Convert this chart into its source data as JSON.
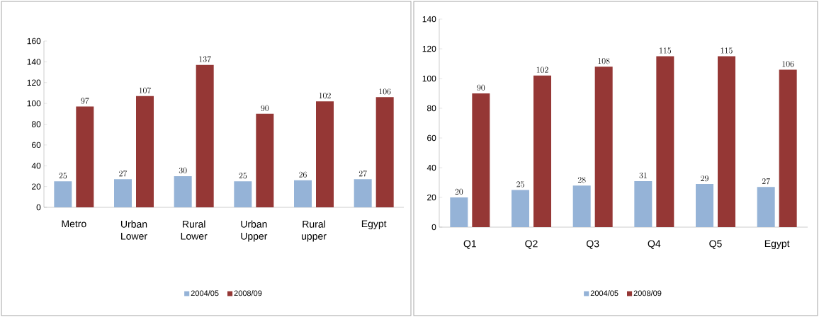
{
  "chart_data": [
    {
      "type": "bar",
      "categories": [
        "Metro",
        "Urban Lower",
        "Rural Lower",
        "Urban Upper",
        "Rural upper",
        "Egypt"
      ],
      "series": [
        {
          "name": "2004/05",
          "color": "#95b3d7",
          "values": [
            25,
            27,
            30,
            25,
            26,
            27
          ]
        },
        {
          "name": "2008/09",
          "color": "#953735",
          "values": [
            97,
            107,
            137,
            90,
            102,
            106
          ]
        }
      ],
      "ylim": [
        0,
        160
      ],
      "yticks": [
        0,
        20,
        40,
        60,
        80,
        100,
        120,
        140,
        160
      ],
      "data_labels": true,
      "legend": "bottom",
      "grid": false
    },
    {
      "type": "bar",
      "categories": [
        "Q1",
        "Q2",
        "Q3",
        "Q4",
        "Q5",
        "Egypt"
      ],
      "series": [
        {
          "name": "2004/05",
          "color": "#95b3d7",
          "values": [
            20,
            25,
            28,
            31,
            29,
            27
          ]
        },
        {
          "name": "2008/09",
          "color": "#953735",
          "values": [
            90,
            102,
            108,
            115,
            115,
            106
          ]
        }
      ],
      "ylim": [
        0,
        140
      ],
      "yticks": [
        0,
        20,
        40,
        60,
        80,
        100,
        120,
        140
      ],
      "data_labels": true,
      "legend": "bottom",
      "grid": false
    }
  ]
}
